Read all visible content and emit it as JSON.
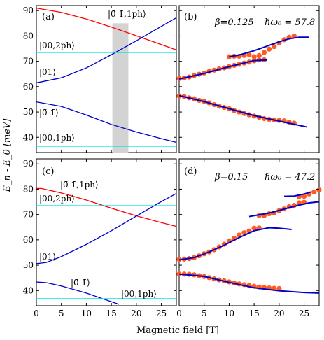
{
  "chart_data": [
    {
      "panel_label": "(a)",
      "type": "line",
      "xlim": [
        0,
        28
      ],
      "ylim": [
        34,
        92
      ],
      "x_ticks": [
        "0",
        "5",
        "10",
        "15",
        "20",
        "25"
      ],
      "y_ticks": [
        "40",
        "50",
        "60",
        "70",
        "80",
        "90"
      ],
      "annotations": [
        "|0̄ 1̄,1ph⟩",
        "|00,2ph⟩",
        "|01⟩",
        "|0̄ 1̄⟩",
        "|00,1ph⟩"
      ],
      "shaded_band": {
        "x": [
          15.2,
          18.4
        ],
        "y": [
          34,
          85
        ],
        "color": "#d3d3d3"
      },
      "series": [
        {
          "color": "#ff0000",
          "x": [
            0,
            5,
            10,
            15,
            20,
            25,
            28
          ],
          "y": [
            91,
            89.3,
            86.7,
            83.5,
            80.1,
            76.6,
            74.5
          ]
        },
        {
          "color": "#0000cc",
          "x": [
            0,
            5,
            10,
            15,
            20,
            25,
            28
          ],
          "y": [
            61.5,
            63.5,
            67.4,
            72.6,
            78.1,
            83.8,
            87.2
          ]
        },
        {
          "color": "#0000cc",
          "x": [
            0,
            5,
            10,
            15,
            20,
            25,
            28
          ],
          "y": [
            54,
            52.2,
            48.8,
            45.1,
            42.1,
            39.5,
            38
          ]
        },
        {
          "color": "#00e5e5",
          "x": [
            0,
            28
          ],
          "y": [
            73.5,
            73.5
          ]
        },
        {
          "color": "#00e5e5",
          "x": [
            0,
            28
          ],
          "y": [
            36.5,
            36.5
          ]
        }
      ]
    },
    {
      "panel_label": "(b)",
      "title": "β=0.125  ℏω₀ = 57.8",
      "type": "scatter",
      "xlim": [
        0,
        28
      ],
      "ylim": [
        34,
        92
      ],
      "x_ticks": [
        "0",
        "5",
        "10",
        "15",
        "20",
        "25"
      ],
      "series": [
        {
          "kind": "markers",
          "color": "#ff5a1f",
          "x": [
            0,
            1,
            2,
            3,
            4,
            5,
            6,
            7,
            8,
            9,
            10,
            11,
            12,
            13,
            14,
            15,
            16,
            17,
            18,
            19,
            20,
            21,
            22,
            23
          ],
          "y": [
            63.2,
            63.4,
            63.8,
            64.4,
            64.9,
            65.4,
            66.0,
            66.5,
            67.0,
            67.4,
            67.9,
            68.4,
            68.8,
            69.3,
            69.7,
            70.2,
            72.3,
            73.5,
            74.8,
            75.8,
            77.2,
            78.5,
            79.5,
            80.0
          ]
        },
        {
          "kind": "markers",
          "color": "#ff5a1f",
          "x": [
            10,
            11,
            12,
            13,
            14,
            15,
            16,
            17
          ],
          "y": [
            71.8,
            72.0,
            72.0,
            72.3,
            72.6,
            71.8,
            70.6,
            70.6
          ]
        },
        {
          "kind": "markers",
          "color": "#ff5a1f",
          "x": [
            0,
            1,
            2,
            3,
            4,
            5,
            6,
            7,
            8,
            9,
            10,
            11,
            12,
            13,
            14,
            15,
            16,
            17,
            18,
            19,
            20,
            21,
            22,
            23
          ],
          "y": [
            56.3,
            56.1,
            55.6,
            55.2,
            54.6,
            54.2,
            53.6,
            52.9,
            52.3,
            51.8,
            51.3,
            50.6,
            50.0,
            49.4,
            48.9,
            48.4,
            47.9,
            47.4,
            47.1,
            46.9,
            46.7,
            46.5,
            46.0,
            45.6
          ]
        },
        {
          "kind": "line",
          "color": "#0000cc",
          "x": [
            0,
            5,
            10,
            15,
            17.5
          ],
          "y": [
            63.0,
            65.2,
            67.9,
            70.3,
            70.5
          ]
        },
        {
          "kind": "line",
          "color": "#0000cc",
          "x": [
            10,
            12,
            15,
            18,
            20,
            22,
            24,
            26
          ],
          "y": [
            71.8,
            72.5,
            74.2,
            76.3,
            77.7,
            78.9,
            79.5,
            79.5
          ]
        },
        {
          "kind": "line",
          "color": "#0000cc",
          "x": [
            0,
            5,
            10,
            15,
            20,
            25.5
          ],
          "y": [
            56.5,
            54.1,
            51.3,
            48.6,
            46.4,
            44.1
          ]
        }
      ]
    },
    {
      "panel_label": "(c)",
      "type": "line",
      "xlim": [
        0,
        28
      ],
      "ylim": [
        34,
        92
      ],
      "xlabel": "0",
      "x_ticks": [
        "0",
        "5",
        "10",
        "15",
        "20",
        "25"
      ],
      "y_ticks": [
        "40",
        "50",
        "60",
        "70",
        "80",
        "90"
      ],
      "annotations": [
        "|0̄ 1̄,1ph⟩",
        "|00,2ph⟩",
        "|01⟩",
        "|0̄ 1̄⟩",
        "|00,1ph⟩"
      ],
      "series": [
        {
          "color": "#ff0000",
          "x": [
            0,
            1,
            5,
            10,
            15,
            20,
            25,
            28
          ],
          "y": [
            80.3,
            80.3,
            78.5,
            75.7,
            72.5,
            69.5,
            66.8,
            65.3
          ]
        },
        {
          "color": "#0000cc",
          "x": [
            0,
            2,
            5,
            10,
            15,
            20,
            25,
            28
          ],
          "y": [
            50.6,
            51.1,
            53.4,
            58.2,
            63.6,
            69.4,
            75.1,
            78.3
          ]
        },
        {
          "color": "#0000cc",
          "x": [
            0,
            2,
            5,
            10,
            15,
            16.5
          ],
          "y": [
            43.4,
            43.1,
            41.8,
            39.0,
            35.6,
            34.6
          ]
        },
        {
          "color": "#00e5e5",
          "x": [
            0,
            28
          ],
          "y": [
            73.5,
            73.5
          ]
        },
        {
          "color": "#00e5e5",
          "x": [
            0,
            28
          ],
          "y": [
            36.8,
            36.8
          ]
        }
      ]
    },
    {
      "panel_label": "(d)",
      "title": "β=0.15   ℏω₀ = 47.2",
      "type": "scatter",
      "xlim": [
        0,
        28
      ],
      "ylim": [
        34,
        92
      ],
      "x_ticks": [
        "0",
        "5",
        "10",
        "15",
        "20",
        "25"
      ],
      "series": [
        {
          "kind": "markers",
          "color": "#ff5a1f",
          "x": [
            0,
            1,
            2,
            3,
            4,
            5,
            6,
            7,
            8,
            9,
            10,
            11,
            12,
            13,
            14,
            15,
            16
          ],
          "y": [
            52.3,
            52.4,
            52.6,
            53.0,
            53.7,
            54.5,
            55.2,
            56.1,
            57.2,
            58.3,
            59.6,
            60.6,
            61.9,
            62.8,
            63.5,
            64.6,
            64.7
          ]
        },
        {
          "kind": "markers",
          "color": "#ff5a1f",
          "x": [
            16,
            17,
            18,
            19,
            20,
            21,
            22,
            23,
            24,
            25
          ],
          "y": [
            69.6,
            69.6,
            70.3,
            70.6,
            71.5,
            72.2,
            73.1,
            73.6,
            74.6,
            74.8
          ]
        },
        {
          "kind": "markers",
          "color": "#ff5a1f",
          "x": [
            24,
            25,
            26,
            27,
            28
          ],
          "y": [
            77.1,
            77.2,
            78.1,
            78.9,
            79.7
          ]
        },
        {
          "kind": "markers",
          "color": "#ff5a1f",
          "x": [
            0,
            1,
            2,
            3,
            4,
            5,
            6,
            7,
            8,
            9,
            10,
            11,
            12,
            13,
            14,
            15,
            16,
            17,
            18,
            19,
            20
          ],
          "y": [
            46.5,
            46.5,
            46.4,
            46.2,
            45.9,
            45.5,
            45.1,
            44.6,
            44.2,
            43.8,
            43.4,
            43.0,
            42.6,
            42.3,
            42.0,
            41.7,
            41.4,
            41.2,
            41.0,
            40.9,
            40.8
          ]
        },
        {
          "kind": "line",
          "color": "#0000cc",
          "x": [
            0,
            3,
            6,
            9,
            12,
            15,
            18,
            20,
            22.5
          ],
          "y": [
            52.1,
            53.0,
            55.2,
            57.9,
            60.9,
            63.6,
            64.8,
            64.6,
            64.1
          ]
        },
        {
          "kind": "line",
          "color": "#0000cc",
          "x": [
            14,
            16,
            18,
            20,
            22,
            24,
            26,
            28
          ],
          "y": [
            69.2,
            69.9,
            70.6,
            71.6,
            72.7,
            73.7,
            74.6,
            75.0
          ]
        },
        {
          "kind": "line",
          "color": "#0000cc",
          "x": [
            21,
            23,
            25,
            26.5
          ],
          "y": [
            77.2,
            77.3,
            78.1,
            79.0
          ]
        },
        {
          "kind": "line",
          "color": "#0000cc",
          "x": [
            0,
            5,
            10,
            15,
            20,
            25,
            28
          ],
          "y": [
            46.5,
            45.6,
            43.2,
            41.1,
            39.9,
            39.2,
            39.0
          ]
        }
      ]
    }
  ],
  "labels": {
    "ylabel": "E_n - E_0 [meV]",
    "xlabel": "Magnetic field [T]",
    "panel_a": "(a)",
    "panel_b": "(b)",
    "panel_c": "(c)",
    "panel_d": "(d)",
    "beta_b": "β=0.125",
    "hw_b": "ℏω₀ = 57.8",
    "beta_d": "β=0.15",
    "hw_d": "ℏω₀ = 47.2",
    "ann_a_top": "|0̄ 1̄,1ph⟩",
    "ann_a_2ph": "|00,2ph⟩",
    "ann_a_01": "|01⟩",
    "ann_a_0b1b": "|0̄ 1̄⟩",
    "ann_a_1ph": "|00,1ph⟩",
    "ann_c_top": "|0̄ 1̄,1ph⟩",
    "ann_c_2ph": "|00,2ph⟩",
    "ann_c_01": "|01⟩",
    "ann_c_0b1b": "|0̄ 1̄⟩",
    "ann_c_1ph": "|00,1ph⟩"
  }
}
